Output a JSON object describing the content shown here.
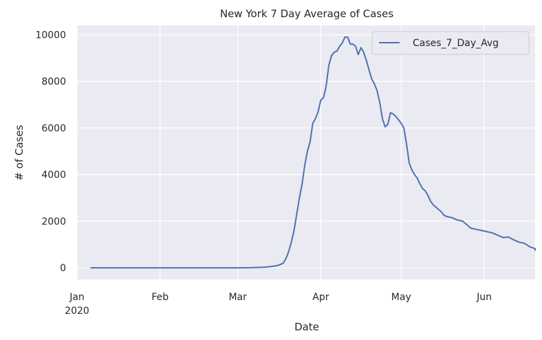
{
  "chart_data": {
    "type": "line",
    "title": "New York 7 Day Average of Cases",
    "xlabel": "Date",
    "ylabel": "# of Cases",
    "xlim": [
      "2020-01-01",
      "2020-06-20"
    ],
    "ylim": [
      -500,
      10400
    ],
    "grid": true,
    "legend_position": "top-right",
    "x_ticks": [
      {
        "date": "2020-01-01",
        "label": "Jan",
        "sublabel": "2020"
      },
      {
        "date": "2020-02-01",
        "label": "Feb",
        "sublabel": ""
      },
      {
        "date": "2020-03-01",
        "label": "Mar",
        "sublabel": ""
      },
      {
        "date": "2020-04-01",
        "label": "Apr",
        "sublabel": ""
      },
      {
        "date": "2020-05-01",
        "label": "May",
        "sublabel": ""
      },
      {
        "date": "2020-06-01",
        "label": "Jun",
        "sublabel": ""
      }
    ],
    "y_ticks": [
      0,
      2000,
      4000,
      6000,
      8000,
      10000
    ],
    "series": [
      {
        "name": "Cases_7_Day_Avg",
        "color": "#4c72b0",
        "points": [
          [
            "2020-01-06",
            0
          ],
          [
            "2020-02-01",
            0
          ],
          [
            "2020-03-01",
            0
          ],
          [
            "2020-03-06",
            5
          ],
          [
            "2020-03-11",
            25
          ],
          [
            "2020-03-14",
            60
          ],
          [
            "2020-03-16",
            100
          ],
          [
            "2020-03-18",
            200
          ],
          [
            "2020-03-19",
            400
          ],
          [
            "2020-03-20",
            700
          ],
          [
            "2020-03-21",
            1100
          ],
          [
            "2020-03-22",
            1600
          ],
          [
            "2020-03-23",
            2300
          ],
          [
            "2020-03-24",
            3000
          ],
          [
            "2020-03-25",
            3600
          ],
          [
            "2020-03-26",
            4400
          ],
          [
            "2020-03-27",
            5000
          ],
          [
            "2020-03-28",
            5400
          ],
          [
            "2020-03-29",
            6200
          ],
          [
            "2020-03-30",
            6400
          ],
          [
            "2020-03-31",
            6700
          ],
          [
            "2020-04-01",
            7200
          ],
          [
            "2020-04-02",
            7300
          ],
          [
            "2020-04-03",
            7800
          ],
          [
            "2020-04-04",
            8700
          ],
          [
            "2020-04-05",
            9100
          ],
          [
            "2020-04-06",
            9250
          ],
          [
            "2020-04-07",
            9300
          ],
          [
            "2020-04-08",
            9500
          ],
          [
            "2020-04-09",
            9650
          ],
          [
            "2020-04-10",
            9900
          ],
          [
            "2020-04-11",
            9900
          ],
          [
            "2020-04-12",
            9600
          ],
          [
            "2020-04-13",
            9600
          ],
          [
            "2020-04-14",
            9500
          ],
          [
            "2020-04-15",
            9150
          ],
          [
            "2020-04-16",
            9450
          ],
          [
            "2020-04-17",
            9250
          ],
          [
            "2020-04-18",
            8900
          ],
          [
            "2020-04-19",
            8500
          ],
          [
            "2020-04-20",
            8100
          ],
          [
            "2020-04-21",
            7900
          ],
          [
            "2020-04-22",
            7600
          ],
          [
            "2020-04-23",
            7100
          ],
          [
            "2020-04-24",
            6400
          ],
          [
            "2020-04-25",
            6050
          ],
          [
            "2020-04-26",
            6150
          ],
          [
            "2020-04-27",
            6650
          ],
          [
            "2020-04-28",
            6600
          ],
          [
            "2020-04-29",
            6500
          ],
          [
            "2020-04-30",
            6350
          ],
          [
            "2020-05-01",
            6200
          ],
          [
            "2020-05-02",
            6000
          ],
          [
            "2020-05-03",
            5300
          ],
          [
            "2020-05-04",
            4500
          ],
          [
            "2020-05-05",
            4200
          ],
          [
            "2020-05-06",
            4000
          ],
          [
            "2020-05-07",
            3850
          ],
          [
            "2020-05-08",
            3600
          ],
          [
            "2020-05-09",
            3400
          ],
          [
            "2020-05-10",
            3300
          ],
          [
            "2020-05-11",
            3100
          ],
          [
            "2020-05-12",
            2850
          ],
          [
            "2020-05-13",
            2700
          ],
          [
            "2020-05-14",
            2600
          ],
          [
            "2020-05-15",
            2500
          ],
          [
            "2020-05-16",
            2400
          ],
          [
            "2020-05-17",
            2250
          ],
          [
            "2020-05-18",
            2200
          ],
          [
            "2020-05-20",
            2150
          ],
          [
            "2020-05-22",
            2050
          ],
          [
            "2020-05-24",
            2000
          ],
          [
            "2020-05-25",
            1900
          ],
          [
            "2020-05-27",
            1700
          ],
          [
            "2020-05-29",
            1650
          ],
          [
            "2020-05-31",
            1600
          ],
          [
            "2020-06-02",
            1550
          ],
          [
            "2020-06-04",
            1500
          ],
          [
            "2020-06-06",
            1400
          ],
          [
            "2020-06-08",
            1300
          ],
          [
            "2020-06-10",
            1320
          ],
          [
            "2020-06-12",
            1200
          ],
          [
            "2020-06-14",
            1100
          ],
          [
            "2020-06-16",
            1050
          ],
          [
            "2020-06-18",
            900
          ],
          [
            "2020-06-20",
            820
          ],
          [
            "2020-06-22",
            780
          ],
          [
            "2020-06-26",
            750
          ],
          [
            "2020-06-28",
            730
          ]
        ]
      }
    ]
  },
  "colors": {
    "plot_background": "#eaeaf2",
    "grid": "#ffffff",
    "line": "#4c72b0",
    "text": "#262626"
  }
}
